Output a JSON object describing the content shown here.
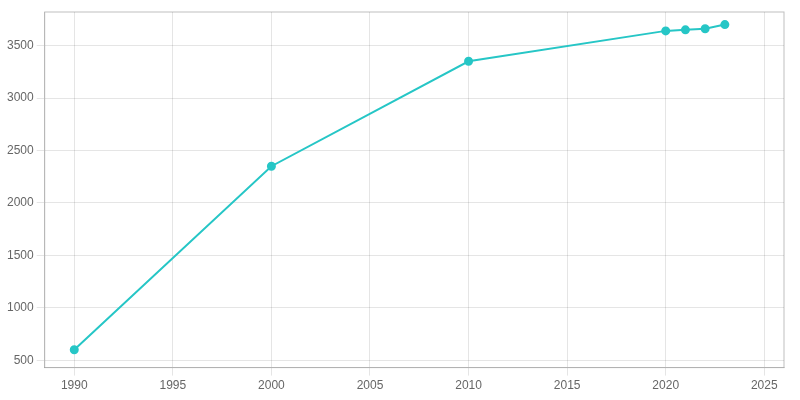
{
  "chart_data": {
    "type": "line",
    "x": [
      1990,
      2000,
      2010,
      2020,
      2021,
      2022,
      2023
    ],
    "values": [
      600,
      2350,
      3350,
      3640,
      3650,
      3660,
      3700
    ],
    "color": "#26C6C6",
    "marker": "circle",
    "xlim": [
      1988.5,
      2026
    ],
    "ylim": [
      430,
      3820
    ],
    "xticks": [
      1990,
      1995,
      2000,
      2005,
      2010,
      2015,
      2020,
      2025
    ],
    "yticks": [
      500,
      1000,
      1500,
      2000,
      2500,
      3000,
      3500
    ],
    "grid": true
  }
}
